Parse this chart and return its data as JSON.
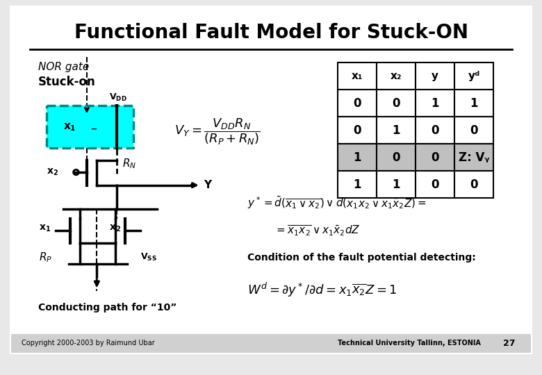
{
  "title": "Functional Fault Model for Stuck-ON",
  "bg_color": "#e8e8e8",
  "slide_bg": "#ffffff",
  "table": {
    "headers": [
      "x₁",
      "x₂",
      "y",
      "yᵈ"
    ],
    "rows": [
      [
        "0",
        "0",
        "1",
        "1"
      ],
      [
        "0",
        "1",
        "0",
        "0"
      ],
      [
        "1",
        "0",
        "0",
        "Z: Vᵧ"
      ],
      [
        "1",
        "1",
        "0",
        "0"
      ]
    ],
    "highlight_row": 2,
    "highlight_color": "#c0c0c0"
  },
  "cyan_color": "#00ffff",
  "dashed_color": "#008888",
  "footer_left": "Copyright 2000-2003 by Raimund Ubar",
  "footer_right": "Technical University Tallinn, ESTONIA",
  "page_number": "27"
}
